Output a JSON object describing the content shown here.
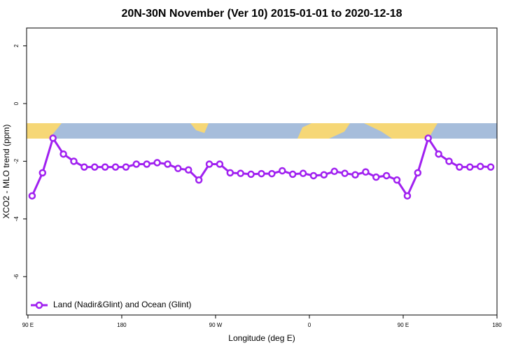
{
  "chart_data": {
    "type": "line",
    "title": "20N-30N November (Ver 10)   2015-01-01 to 2020-12-18",
    "xlabel": "Longitude (deg E)",
    "ylabel": "XCO2 - MLO trend (ppm)",
    "x": [
      94,
      104,
      114,
      124,
      134,
      144,
      154,
      164,
      174,
      184,
      194,
      204,
      214,
      224,
      234,
      244,
      254,
      264,
      274,
      284,
      294,
      304,
      314,
      324,
      334,
      344,
      354,
      364,
      374,
      384,
      394,
      404,
      414,
      424,
      434,
      444,
      454,
      464,
      474,
      484,
      494,
      504,
      514,
      524,
      534
    ],
    "series": [
      {
        "name": "Land (Nadir&Glint) and Ocean (Glint)",
        "color": "#a020f0",
        "values": [
          -3.2,
          -2.4,
          -1.2,
          -1.75,
          -2.0,
          -2.2,
          -2.2,
          -2.2,
          -2.2,
          -2.2,
          -2.1,
          -2.1,
          -2.05,
          -2.1,
          -2.25,
          -2.3,
          -2.65,
          -2.1,
          -2.1,
          -2.4,
          -2.42,
          -2.45,
          -2.43,
          -2.43,
          -2.33,
          -2.45,
          -2.42,
          -2.5,
          -2.47,
          -2.35,
          -2.42,
          -2.47,
          -2.37,
          -2.55,
          -2.5,
          -2.65,
          -3.2,
          -2.4,
          -1.2,
          -1.75,
          -2.0,
          -2.2,
          -2.2,
          -2.18,
          -2.2
        ]
      }
    ],
    "xlim": [
      88.7,
      540
    ],
    "ylim": [
      2.62,
      -7.33
    ],
    "xticks": [
      {
        "value": 90,
        "label": "90 E"
      },
      180,
      {
        "value": 270,
        "label": "90 W"
      },
      {
        "value": 360,
        "label": "0"
      },
      {
        "value": 450,
        "label": "90 E"
      },
      {
        "value": 540,
        "label": "180"
      }
    ],
    "yticks": [
      2,
      0,
      -2,
      -4,
      -6
    ],
    "legend": "bottom-left"
  }
}
